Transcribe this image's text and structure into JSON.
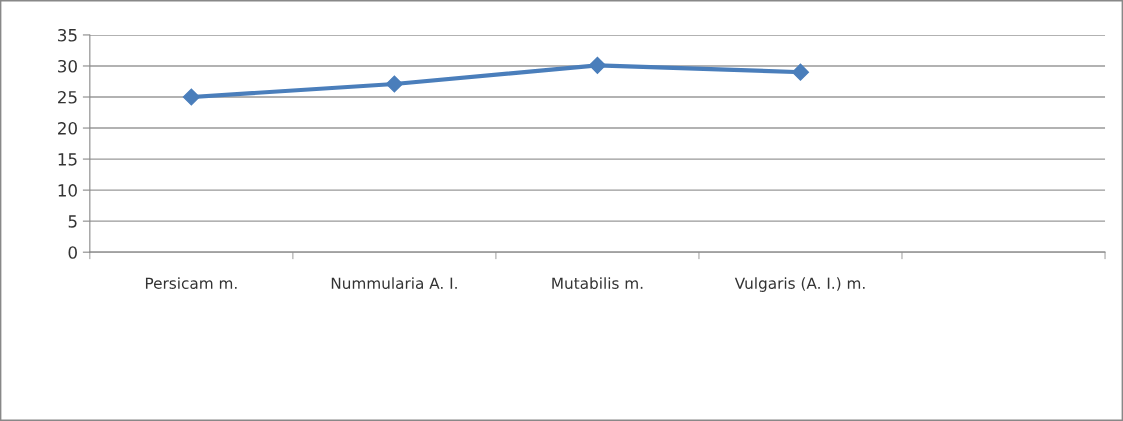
{
  "chart_data": {
    "type": "line",
    "categories": [
      "Persicam m.",
      "Nummularia A. I.",
      "Mutabilis m.",
      "Vulgaris (A. I.) m.",
      null
    ],
    "series": [
      {
        "color": "#4a7ebb",
        "values": [
          25,
          27.1,
          30.1,
          29.0,
          null
        ]
      }
    ],
    "ylim": [
      0,
      35
    ],
    "yticks": [
      0,
      5,
      10,
      15,
      20,
      25,
      30,
      35
    ],
    "grid": "y",
    "legend": false,
    "marker": "diamond",
    "line_style": "solid"
  }
}
